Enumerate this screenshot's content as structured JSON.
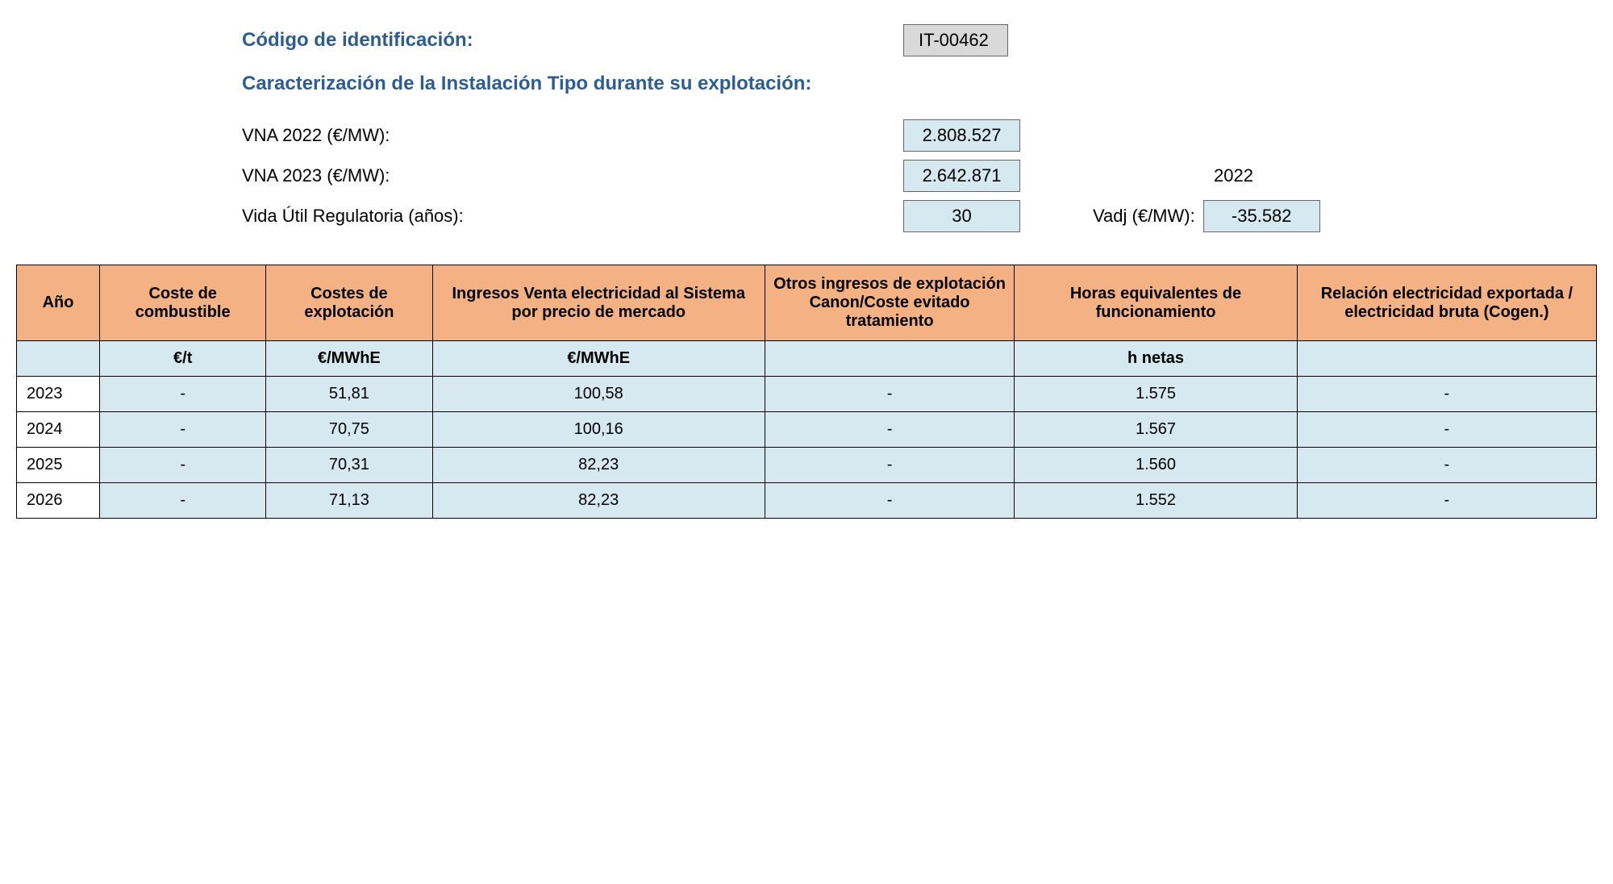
{
  "header": {
    "code_label": "Código de identificación:",
    "code_value": "IT-00462",
    "section_title": "Caracterización de la Instalación Tipo durante su explotación:",
    "vna_2022_label": "VNA 2022 (€/MW):",
    "vna_2022_value": "2.808.527",
    "vna_2023_label": "VNA 2023 (€/MW):",
    "vna_2023_value": "2.642.871",
    "year_ref": "2022",
    "vida_util_label": "Vida Útil Regulatoria (años):",
    "vida_util_value": "30",
    "vadj_label": "Vadj (€/MW):",
    "vadj_value": "-35.582"
  },
  "table": {
    "headers": {
      "year": "Año",
      "fuel_cost": "Coste de combustible",
      "exploit_cost": "Costes de explotación",
      "income": "Ingresos Venta electricidad al Sistema por precio de mercado",
      "other_income": "Otros ingresos de explotación Canon/Coste evitado tratamiento",
      "hours": "Horas equivalentes de funcionamiento",
      "ratio": "Relación electricidad exportada / electricidad bruta (Cogen.)"
    },
    "units": {
      "year": "",
      "fuel_cost": "€/t",
      "exploit_cost": "€/MWhE",
      "income": "€/MWhE",
      "other_income": "",
      "hours": "h netas",
      "ratio": ""
    },
    "rows": [
      {
        "year": "2023",
        "fuel_cost": "-",
        "exploit_cost": "51,81",
        "income": "100,58",
        "other_income": "-",
        "hours": "1.575",
        "ratio": "-"
      },
      {
        "year": "2024",
        "fuel_cost": "-",
        "exploit_cost": "70,75",
        "income": "100,16",
        "other_income": "-",
        "hours": "1.567",
        "ratio": "-"
      },
      {
        "year": "2025",
        "fuel_cost": "-",
        "exploit_cost": "70,31",
        "income": "82,23",
        "other_income": "-",
        "hours": "1.560",
        "ratio": "-"
      },
      {
        "year": "2026",
        "fuel_cost": "-",
        "exploit_cost": "71,13",
        "income": "82,23",
        "other_income": "-",
        "hours": "1.552",
        "ratio": "-"
      }
    ]
  },
  "colors": {
    "header_bg": "#f4b183",
    "cell_bg": "#d6e9f0",
    "code_bg": "#d9d9d9",
    "title_color": "#2f5c8f",
    "border_color": "#000000"
  }
}
